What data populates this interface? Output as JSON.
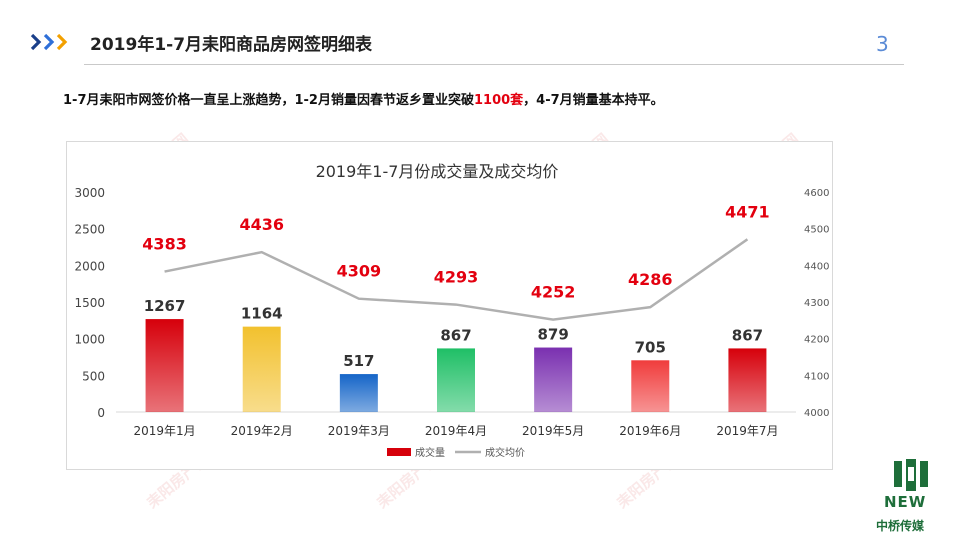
{
  "slide": {
    "title": "2019年1-7月耒阳商品房网签明细表",
    "page_number": "3",
    "summary_before": "1-7月耒阳市网签价格一直呈上涨趋势，1-2月销量因春节返乡置业突破",
    "summary_highlight": "1100套",
    "summary_after": "，4-7月销量基本持平。"
  },
  "watermark": {
    "text": "耒阳房产网"
  },
  "brand": {
    "new": "NEW",
    "name": "中桥传媒"
  },
  "colors": {
    "accent_red": "#e3000f",
    "title_blue": "#5b8bd6",
    "price_line": "#b0b0b0"
  },
  "chart_data": {
    "type": "bar",
    "title": "2019年1-7月份成交量及成交均价",
    "categories": [
      "2019年1月",
      "2019年2月",
      "2019年3月",
      "2019年4月",
      "2019年5月",
      "2019年6月",
      "2019年7月"
    ],
    "series": [
      {
        "name": "成交量",
        "type": "bar",
        "axis": "left",
        "values": [
          1267,
          1164,
          517,
          867,
          879,
          705,
          867
        ],
        "colors": [
          "#d6000b",
          "#f2c12e",
          "#1565c8",
          "#1fbf66",
          "#7a30b0",
          "#f03c3c",
          "#d6000b"
        ]
      },
      {
        "name": "成交均价",
        "type": "line",
        "axis": "right",
        "values": [
          4383,
          4436,
          4309,
          4293,
          4252,
          4286,
          4471
        ],
        "color": "#b0b0b0"
      }
    ],
    "ylim_left": [
      0,
      3000
    ],
    "yticks_left": [
      0,
      500,
      1000,
      1500,
      2000,
      2500,
      3000
    ],
    "ylim_right": [
      4000,
      4600
    ],
    "yticks_right": [
      4000,
      4100,
      4200,
      4300,
      4400,
      4500,
      4600
    ],
    "legend": "bottom",
    "grid": false
  }
}
